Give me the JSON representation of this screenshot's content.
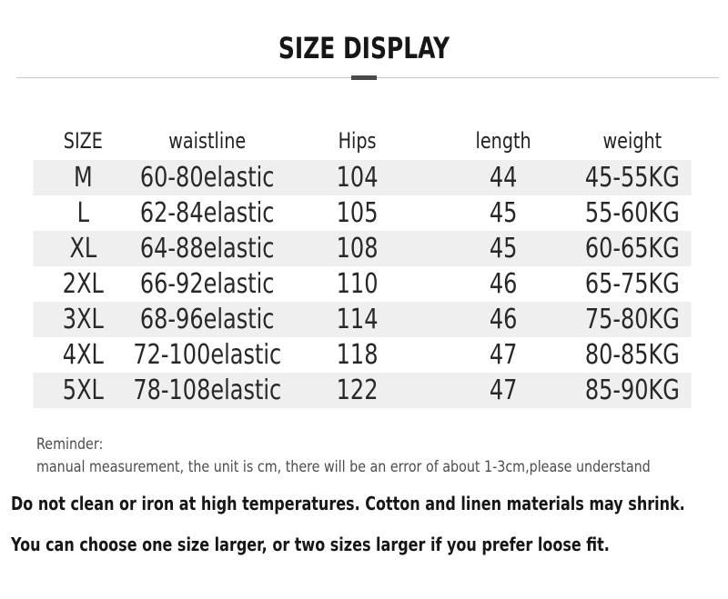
{
  "title": "SIZE DISPLAY",
  "table": {
    "headers": [
      "SIZE",
      "waistline",
      "Hips",
      "length",
      "weight"
    ],
    "rows": [
      [
        "M",
        "60-80elastic",
        "104",
        "44",
        "45-55KG"
      ],
      [
        "L",
        "62-84elastic",
        "105",
        "45",
        "55-60KG"
      ],
      [
        "XL",
        "64-88elastic",
        "108",
        "45",
        "60-65KG"
      ],
      [
        "2XL",
        "66-92elastic",
        "110",
        "46",
        "65-75KG"
      ],
      [
        "3XL",
        "68-96elastic",
        "114",
        "46",
        "75-80KG"
      ],
      [
        "4XL",
        "72-100elastic",
        "118",
        "47",
        "80-85KG"
      ],
      [
        "5XL",
        "78-108elastic",
        "122",
        "47",
        "85-90KG"
      ]
    ]
  },
  "reminder": {
    "heading": "Reminder:",
    "body": "manual measurement, the unit is cm, there will be an error of about 1-3cm,please understand"
  },
  "notes": [
    "Do not clean or iron at high temperatures. Cotton and linen materials may shrink.",
    "You can choose one size larger, or two sizes larger if you prefer loose fit."
  ],
  "colors": {
    "stripe": "#efefef",
    "divider_line": "#c9c9c9",
    "divider_accent": "#4a4a4a",
    "text": "#282828",
    "reminder_text": "#4c4c4c"
  }
}
